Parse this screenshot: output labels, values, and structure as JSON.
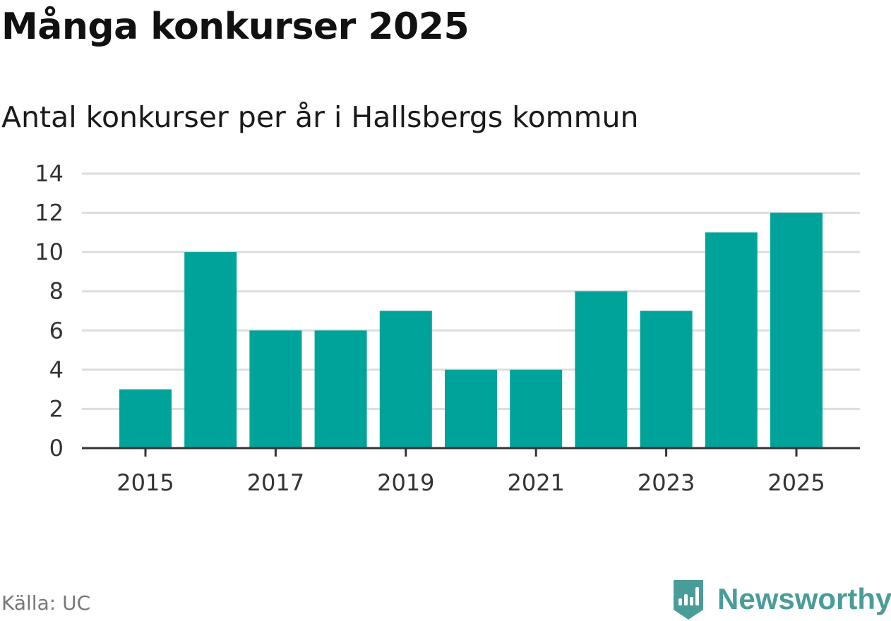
{
  "title": "Många konkurser 2025",
  "subtitle": "Antal konkurser per år i Hallsbergs kommun",
  "source": "Källa: UC",
  "brand": {
    "name": "Newsworthy",
    "icon": "newsworthy-logo-icon",
    "color": "#4a9c99"
  },
  "colors": {
    "bar": "#00a39a",
    "grid": "#dddddd",
    "axis": "#333333",
    "text": "#333333"
  },
  "chart_data": {
    "type": "bar",
    "title": "Många konkurser 2025",
    "subtitle": "Antal konkurser per år i Hallsbergs kommun",
    "xlabel": "",
    "ylabel": "",
    "categories": [
      "2015",
      "2016",
      "2017",
      "2018",
      "2019",
      "2020",
      "2021",
      "2022",
      "2023",
      "2024",
      "2025"
    ],
    "values": [
      3,
      10,
      6,
      6,
      7,
      4,
      4,
      8,
      7,
      11,
      12
    ],
    "ylim": [
      0,
      14
    ],
    "yticks": [
      0,
      2,
      4,
      6,
      8,
      10,
      12,
      14
    ],
    "xticks": [
      "2015",
      "2017",
      "2019",
      "2021",
      "2023",
      "2025"
    ],
    "grid": true,
    "legend": "none"
  }
}
